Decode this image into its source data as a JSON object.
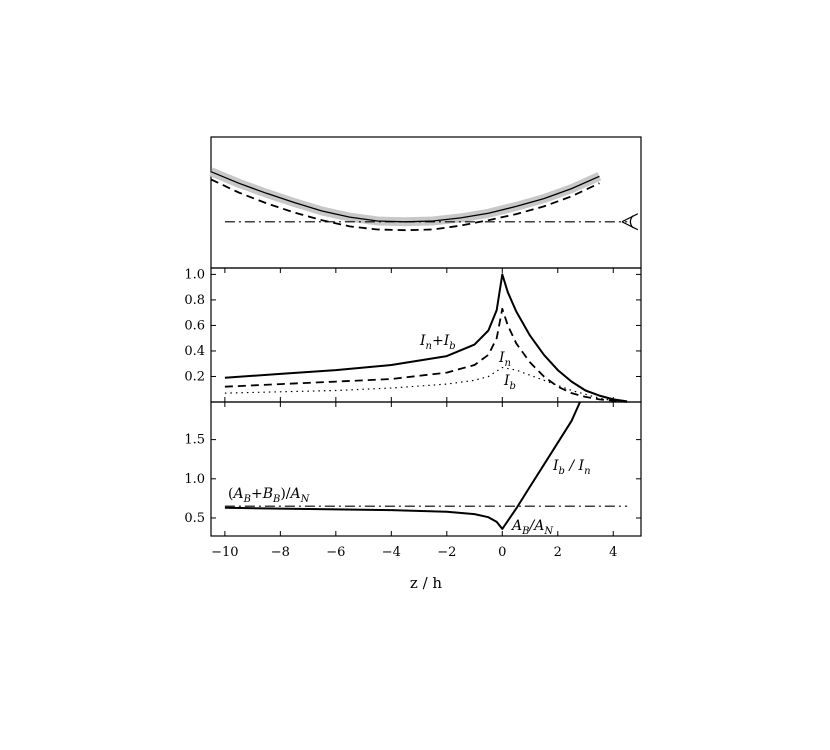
{
  "chart_data": {
    "type": "line",
    "xlabel": "z / h",
    "xlim": [
      -10.5,
      5.0
    ],
    "xticks": [
      -10,
      -8,
      -6,
      -4,
      -2,
      0,
      2,
      4
    ],
    "xtick_labels": [
      "−10",
      "−8",
      "−6",
      "−4",
      "−2",
      "0",
      "2",
      "4"
    ],
    "panels": [
      {
        "id": "geometry",
        "ylim": [
          -0.6,
          1.1
        ],
        "grid": false,
        "series": [
          {
            "style": "solid-band",
            "x": [
              -10.5,
              -9.5,
              -8.5,
              -7.5,
              -6.5,
              -5.5,
              -4.5,
              -3.5,
              -2.5,
              -1.5,
              -0.5,
              0.5,
              1.5,
              2.5,
              3.5
            ],
            "y": [
              0.65,
              0.5,
              0.37,
              0.25,
              0.14,
              0.06,
              0.01,
              0.0,
              0.01,
              0.05,
              0.11,
              0.2,
              0.3,
              0.43,
              0.59
            ]
          },
          {
            "style": "dashed",
            "x": [
              -10.5,
              -9.5,
              -8.5,
              -7.5,
              -6.5,
              -5.5,
              -4.5,
              -3.5,
              -2.5,
              -1.5,
              -0.5,
              0.5,
              1.5,
              2.5,
              3.5
            ],
            "y": [
              0.55,
              0.38,
              0.24,
              0.12,
              0.02,
              -0.06,
              -0.1,
              -0.11,
              -0.1,
              -0.05,
              0.02,
              0.1,
              0.2,
              0.33,
              0.5
            ]
          },
          {
            "style": "dash-dot",
            "x": [
              -10.0,
              4.5
            ],
            "y": [
              0.0,
              0.0
            ]
          }
        ],
        "annotations": [
          {
            "icon": "eye-icon",
            "x": 4.6,
            "y": 0.0
          }
        ]
      },
      {
        "id": "intensity",
        "ylim": [
          0.0,
          1.05
        ],
        "yticks": [
          0.2,
          0.4,
          0.6,
          0.8,
          1.0
        ],
        "ytick_labels": [
          "0.2",
          "0.4",
          "0.6",
          "0.8",
          "1.0"
        ],
        "series": [
          {
            "style": "solid",
            "x": [
              -10.0,
              -8.0,
              -6.0,
              -4.0,
              -2.0,
              -1.0,
              -0.5,
              -0.2,
              0.0,
              0.2,
              0.5,
              1.0,
              1.5,
              2.0,
              2.5,
              3.0,
              3.5,
              4.0,
              4.5
            ],
            "y": [
              0.19,
              0.22,
              0.25,
              0.29,
              0.36,
              0.45,
              0.56,
              0.72,
              1.0,
              0.86,
              0.71,
              0.52,
              0.37,
              0.25,
              0.16,
              0.09,
              0.05,
              0.02,
              0.005
            ]
          },
          {
            "style": "dashed",
            "x": [
              -10.0,
              -8.0,
              -6.0,
              -4.0,
              -2.0,
              -1.0,
              -0.5,
              -0.2,
              0.0,
              0.2,
              0.5,
              1.0,
              1.5,
              2.0,
              2.5,
              3.0,
              3.5,
              4.0,
              4.5
            ],
            "y": [
              0.12,
              0.14,
              0.16,
              0.18,
              0.23,
              0.29,
              0.37,
              0.5,
              0.73,
              0.6,
              0.46,
              0.31,
              0.2,
              0.12,
              0.07,
              0.04,
              0.02,
              0.01,
              0.0
            ]
          },
          {
            "style": "dotted",
            "x": [
              -10.0,
              -8.0,
              -6.0,
              -4.0,
              -2.0,
              -1.0,
              -0.5,
              0.0,
              0.5,
              1.0,
              1.5,
              2.0,
              2.5,
              3.0,
              3.5,
              4.0,
              4.5
            ],
            "y": [
              0.07,
              0.08,
              0.09,
              0.11,
              0.14,
              0.17,
              0.2,
              0.27,
              0.25,
              0.21,
              0.17,
              0.13,
              0.09,
              0.06,
              0.03,
              0.01,
              0.0
            ]
          }
        ],
        "annotations": [
          {
            "text": "In+Ib",
            "x": -5.2,
            "y": 0.44
          },
          {
            "text": "In",
            "x": -0.3,
            "y": 0.34
          },
          {
            "text": "Ib",
            "x": 0.0,
            "y": 0.12
          }
        ]
      },
      {
        "id": "ratios",
        "ylim": [
          0.27,
          1.98
        ],
        "yticks": [
          0.5,
          1.0,
          1.5
        ],
        "ytick_labels": [
          "0.5",
          "1.0",
          "1.5"
        ],
        "series": [
          {
            "style": "solid",
            "x": [
              -10.0,
              -8.0,
              -6.0,
              -4.0,
              -2.0,
              -1.0,
              -0.5,
              -0.2,
              0.0,
              0.5,
              1.0,
              1.5,
              2.0,
              2.5,
              2.8
            ],
            "y": [
              0.63,
              0.62,
              0.61,
              0.6,
              0.58,
              0.55,
              0.51,
              0.45,
              0.36,
              0.62,
              0.9,
              1.18,
              1.46,
              1.74,
              1.98
            ]
          },
          {
            "style": "dash-dot",
            "x": [
              -10.0,
              4.5
            ],
            "y": [
              0.65,
              0.65
            ]
          }
        ],
        "annotations": [
          {
            "text": "(AB+BB)/AN",
            "x": -9.2,
            "y": 0.75
          },
          {
            "text": "Ib / In",
            "x": 2.2,
            "y": 1.1
          },
          {
            "text": "AB/AN",
            "x": 0.7,
            "y": 0.3
          }
        ]
      }
    ]
  }
}
